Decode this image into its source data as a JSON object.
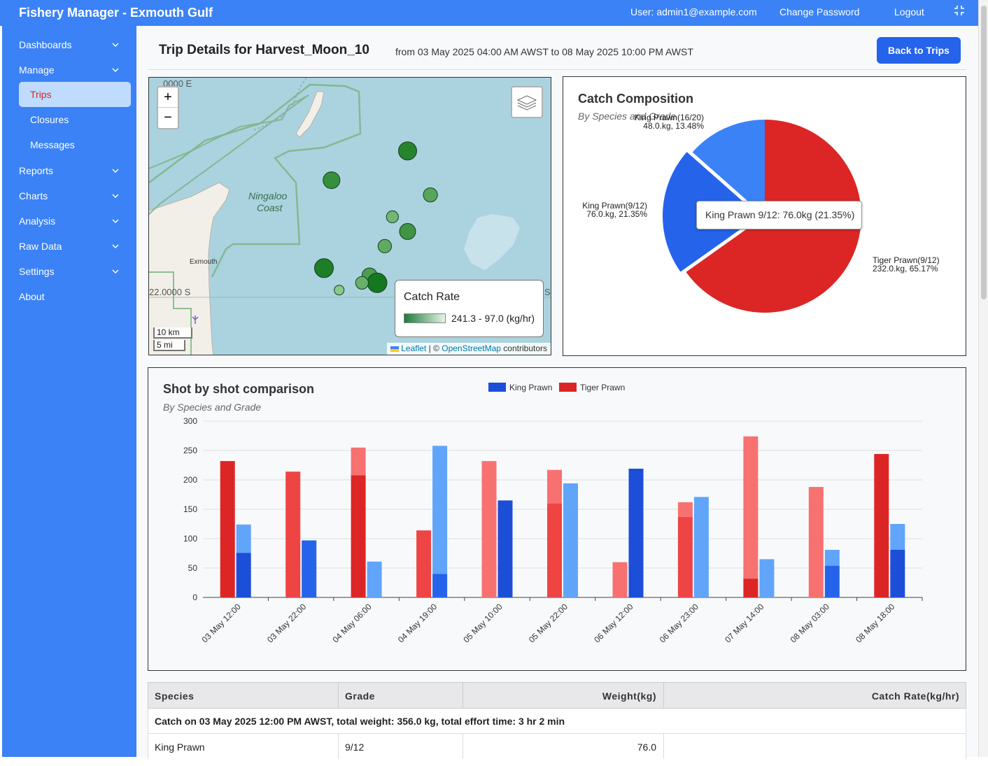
{
  "header": {
    "title": "Fishery Manager - Exmouth Gulf",
    "user": "User: admin1@example.com",
    "change_password": "Change Password",
    "logout": "Logout"
  },
  "sidebar": {
    "items": [
      {
        "label": "Dashboards"
      },
      {
        "label": "Manage"
      },
      {
        "label": "Trips"
      },
      {
        "label": "Closures"
      },
      {
        "label": "Messages"
      },
      {
        "label": "Reports"
      },
      {
        "label": "Charts"
      },
      {
        "label": "Analysis"
      },
      {
        "label": "Raw Data"
      },
      {
        "label": "Settings"
      },
      {
        "label": "About"
      }
    ]
  },
  "page": {
    "title": "Trip Details for Harvest_Moon_10",
    "range": "from 03 May 2025 04:00 AM AWST to 08 May 2025 10:00 PM AWST",
    "back_button": "Back to Trips"
  },
  "map": {
    "zoom_in": "+",
    "zoom_out": "−",
    "legend_title": "Catch Rate",
    "legend_range": "241.3 - 97.0 (kg/hr)",
    "place_ningaloo_1": "Ningaloo",
    "place_ningaloo_2": "Coast",
    "place_exmouth": "Exmouth",
    "lat_label": "22.0000 S",
    "lat_label_right": "S",
    "lon_label": "0000 E",
    "scale_km": "10 km",
    "scale_mi": "5 mi",
    "attribution_leaflet": "Leaflet",
    "attribution_sep": " | © ",
    "attribution_osm": "OpenStreetMap",
    "attribution_contrib": " contributors",
    "points": [
      {
        "lat": -21.82,
        "lon": 114.39,
        "rate": 220
      },
      {
        "lat": -21.86,
        "lon": 114.29,
        "rate": 200
      },
      {
        "lat": -21.88,
        "lon": 114.42,
        "rate": 160
      },
      {
        "lat": -21.91,
        "lon": 114.37,
        "rate": 130
      },
      {
        "lat": -21.93,
        "lon": 114.39,
        "rate": 190
      },
      {
        "lat": -21.95,
        "lon": 114.36,
        "rate": 150
      },
      {
        "lat": -21.98,
        "lon": 114.28,
        "rate": 230
      },
      {
        "lat": -21.99,
        "lon": 114.34,
        "rate": 175
      },
      {
        "lat": -22.0,
        "lon": 114.35,
        "rate": 241.3
      },
      {
        "lat": -22.0,
        "lon": 114.33,
        "rate": 140
      },
      {
        "lat": -22.01,
        "lon": 114.3,
        "rate": 97
      }
    ],
    "colors": {
      "water": "#aad3df",
      "land": "#f2efe9",
      "park": "#8fbf8f",
      "dot_dark": "#137a2b"
    }
  },
  "pie": {
    "title": "Catch Composition",
    "subtitle": "By Species and Grade",
    "tooltip": "King Prawn 9/12: 76.0kg (21.35%)",
    "chart_data": {
      "type": "pie",
      "slices": [
        {
          "label": "Tiger Prawn(9/12)",
          "detail": "232.0.kg, 65.17%",
          "value": 232.0,
          "color": "#dc2626"
        },
        {
          "label": "King Prawn(9/12)",
          "detail": "76.0.kg, 21.35%",
          "value": 76.0,
          "color": "#2563eb"
        },
        {
          "label": "King Prawn(16/20)",
          "detail": "48.0.kg, 13.48%",
          "value": 48.0,
          "color": "#3b82f6"
        }
      ]
    }
  },
  "bar": {
    "title": "Shot by shot comparison",
    "subtitle": "By Species and Grade",
    "legend": [
      {
        "name": "King Prawn",
        "color": "#1d4ed8"
      },
      {
        "name": "Tiger Prawn",
        "color": "#dc2626"
      }
    ],
    "chart_data": {
      "type": "bar",
      "stacked": true,
      "categories": [
        "03 May 12:00",
        "03 May 22:00",
        "04 May 06:00",
        "04 May 19:00",
        "05 May 10:00",
        "05 May 22:00",
        "06 May 12:00",
        "06 May 23:00",
        "07 May 14:00",
        "08 May 03:00",
        "08 May 18:00"
      ],
      "ylim": [
        0,
        300
      ],
      "yticks": [
        0,
        50,
        100,
        150,
        200,
        250,
        300
      ],
      "series": [
        {
          "name": "Tiger Prawn",
          "segments": [
            [
              232,
              0
            ],
            [
              214,
              0
            ],
            [
              208,
              47
            ],
            [
              114,
              0
            ],
            [
              0,
              232
            ],
            [
              160,
              57
            ],
            [
              0,
              60
            ],
            [
              137,
              25
            ],
            [
              32,
              242
            ],
            [
              0,
              188
            ],
            [
              244,
              0
            ]
          ]
        },
        {
          "name": "King Prawn",
          "segments": [
            [
              76,
              48
            ],
            [
              97,
              0
            ],
            [
              0,
              61
            ],
            [
              40,
              218
            ],
            [
              165,
              0
            ],
            [
              0,
              194
            ],
            [
              219,
              0
            ],
            [
              0,
              171
            ],
            [
              0,
              65
            ],
            [
              54,
              27
            ],
            [
              81,
              44
            ]
          ]
        }
      ],
      "colors": {
        "tiger_dark": "#dc2626",
        "tiger_mid": "#ef4444",
        "tiger_light": "#f87171",
        "king_dark": "#1d4ed8",
        "king_mid": "#2563eb",
        "king_light": "#60a5fa"
      }
    }
  },
  "table": {
    "headers": [
      "Species",
      "Grade",
      "Weight(kg)",
      "Catch Rate(kg/hr)"
    ],
    "catch_summary": "Catch on 03 May 2025 12:00 PM AWST, total weight: 356.0 kg, total effort time: 3 hr 2 min",
    "rows": [
      {
        "species": "King Prawn",
        "grade": "9/12",
        "weight": "76.0",
        "rate": ""
      }
    ]
  }
}
